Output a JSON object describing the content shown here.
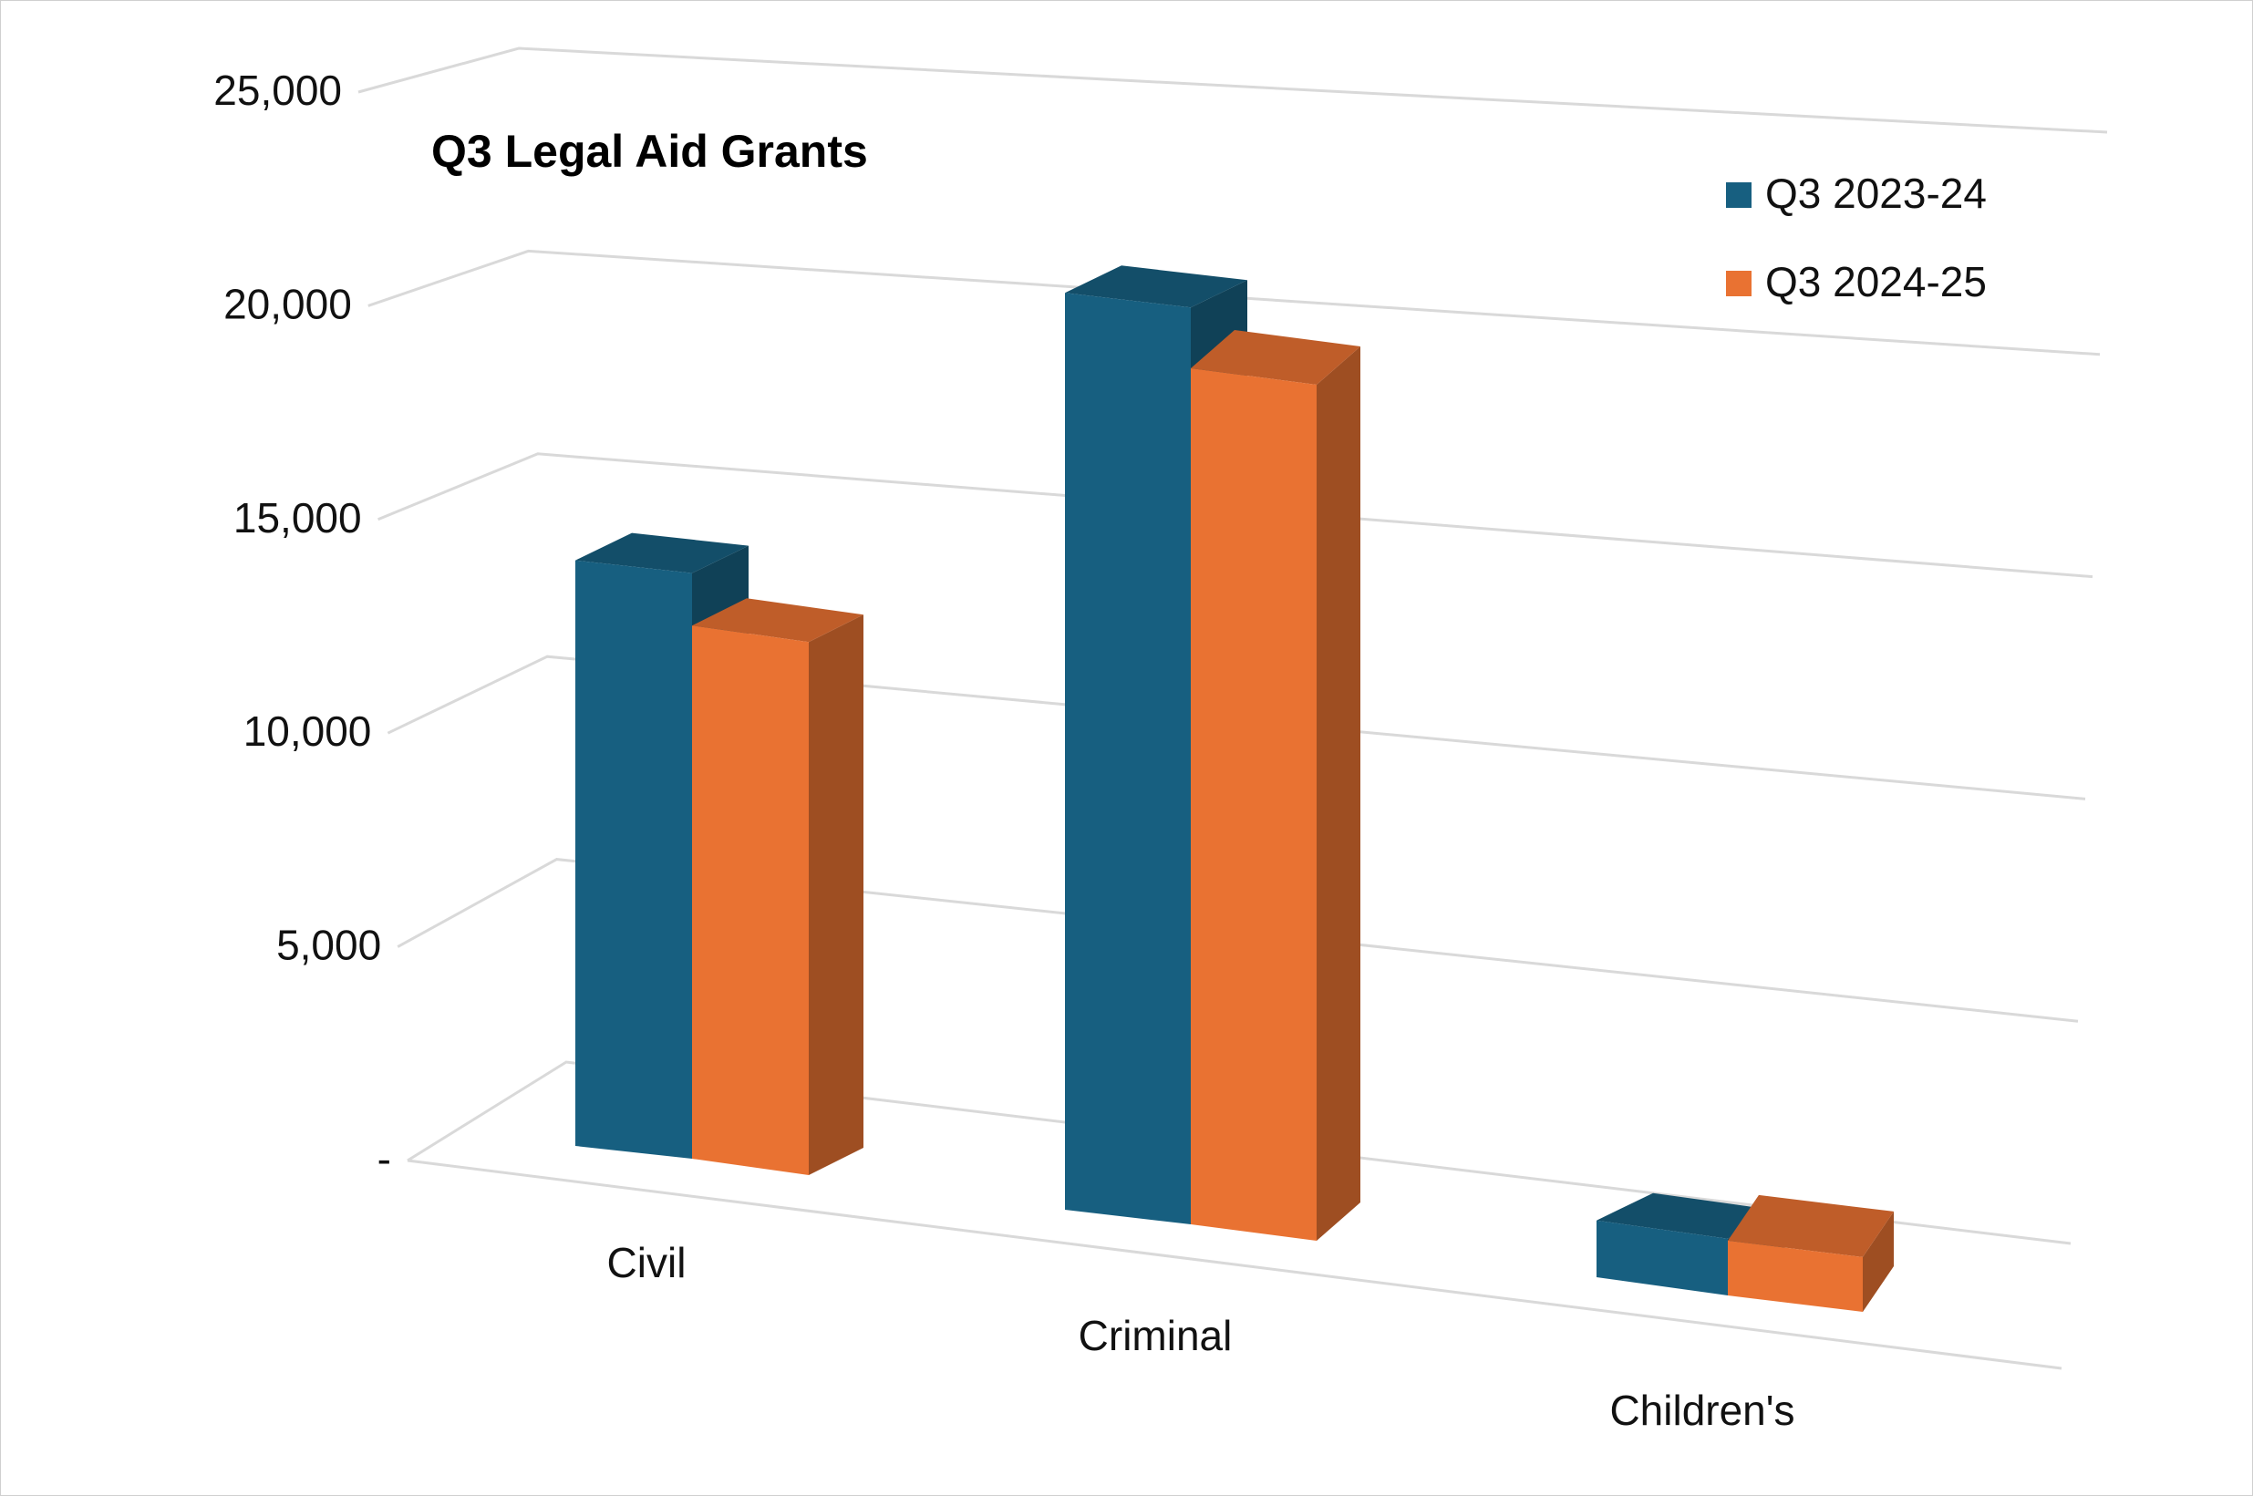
{
  "chart_data": {
    "type": "bar",
    "title": "Q3 Legal Aid Grants",
    "categories": [
      "Civil",
      "Criminal",
      "Children's"
    ],
    "series": [
      {
        "name": "Q3 2023-24",
        "values": [
          14500,
          22600,
          1400
        ],
        "color": "#175F80"
      },
      {
        "name": "Q3 2024-25",
        "values": [
          13200,
          21100,
          1350
        ],
        "color": "#E97232"
      }
    ],
    "y_ticks": [
      "-",
      "5,000",
      "10,000",
      "15,000",
      "20,000",
      "25,000"
    ],
    "ylim": [
      0,
      25000
    ],
    "gridlines": true,
    "legend_position": "top-right",
    "style": "3d-clustered-column"
  }
}
